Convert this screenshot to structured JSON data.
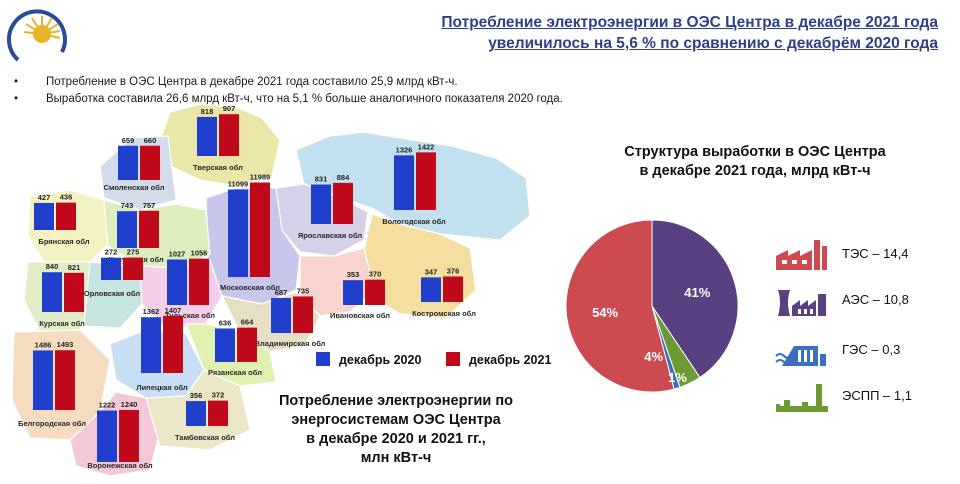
{
  "header": {
    "title_line1": "Потребление электроэнергии в ОЭС Центра в декабре 2021 года",
    "title_line2": "увеличилось на 5,6 % по сравнению с декабрём 2020 года"
  },
  "bullets": [
    "Потребление  в ОЭС Центра  в декабре  2021  года  составило  25,9  млрд  кВт-ч.",
    "Выработка  составила  26,6 млрд  кВт-ч,  что  на  5,1 %  больше  аналогичного  показателя  2020  года."
  ],
  "map": {
    "caption_line1": "Потребление электроэнергии по",
    "caption_line2": "энергосистемам ОЭС Центра",
    "caption_line3": "в декабре 2020 и 2021 гг.,",
    "caption_line4": "млн кВт-ч",
    "legend_2020": "декабрь 2020",
    "legend_2021": "декабрь 2021",
    "color_2020": "#1f3fcc",
    "color_2021": "#c0091a"
  },
  "chart_data": [
    {
      "type": "bar",
      "title": "",
      "series_names": [
        "декабрь 2020",
        "декабрь 2021"
      ],
      "regions": [
        {
          "name": "Тверская обл",
          "v2020": 818,
          "v2021": 907
        },
        {
          "name": "Смоленская обл",
          "v2020": 659,
          "v2021": 660
        },
        {
          "name": "Брянская обл",
          "v2020": 427,
          "v2021": 436
        },
        {
          "name": "Калужская обл",
          "v2020": 743,
          "v2021": 757
        },
        {
          "name": "Московская обл",
          "v2020": 11099,
          "v2021": 11989
        },
        {
          "name": "Ярославская обл",
          "v2020": 831,
          "v2021": 884
        },
        {
          "name": "Вологодская обл",
          "v2020": 1326,
          "v2021": 1422
        },
        {
          "name": "Курская обл",
          "v2020": 840,
          "v2021": 821
        },
        {
          "name": "Орловская обл",
          "v2020": 272,
          "v2021": 275
        },
        {
          "name": "Тульская обл",
          "v2020": 1027,
          "v2021": 1056
        },
        {
          "name": "Владимирская обл",
          "v2020": 687,
          "v2021": 735
        },
        {
          "name": "Ивановская обл",
          "v2020": 353,
          "v2021": 370
        },
        {
          "name": "Костромская обл",
          "v2020": 347,
          "v2021": 376
        },
        {
          "name": "Рязанская обл",
          "v2020": 636,
          "v2021": 664
        },
        {
          "name": "Липецкая обл",
          "v2020": 1362,
          "v2021": 1407
        },
        {
          "name": "Белгородская обл",
          "v2020": 1486,
          "v2021": 1493
        },
        {
          "name": "Тамбовская обл",
          "v2020": 356,
          "v2021": 372
        },
        {
          "name": "Воронежская обл",
          "v2020": 1222,
          "v2021": 1240
        }
      ]
    },
    {
      "type": "pie",
      "title": "Структура выработки в ОЭС Центра в декабре 2021 года, млрд кВт-ч",
      "slices": [
        {
          "name": "ТЭС",
          "value": 14.4,
          "label": "54%",
          "color": "#cc4a50"
        },
        {
          "name": "АЭС",
          "value": 10.8,
          "label": "41%",
          "color": "#5a4080"
        },
        {
          "name": "ГЭС",
          "value": 0.3,
          "label": "1%",
          "color": "#3a6ec0"
        },
        {
          "name": "ЭСПП",
          "value": 1.1,
          "label": "4%",
          "color": "#6e9a34"
        }
      ]
    }
  ],
  "pie_header": {
    "line1": "Структура выработки в ОЭС Центра",
    "line2": "в декабре 2021 года, млрд кВт-ч"
  },
  "structure": [
    {
      "label": "ТЭС – 14,4",
      "icon": "tes-plant-icon",
      "color": "#cc4a50"
    },
    {
      "label": "АЭС – 10,8",
      "icon": "nuclear-plant-icon",
      "color": "#5a4080"
    },
    {
      "label": "ГЭС – 0,3",
      "icon": "hydro-plant-icon",
      "color": "#3a6ec0"
    },
    {
      "label": "ЭСПП – 1,1",
      "icon": "industrial-plant-icon",
      "color": "#6e9a34"
    }
  ]
}
